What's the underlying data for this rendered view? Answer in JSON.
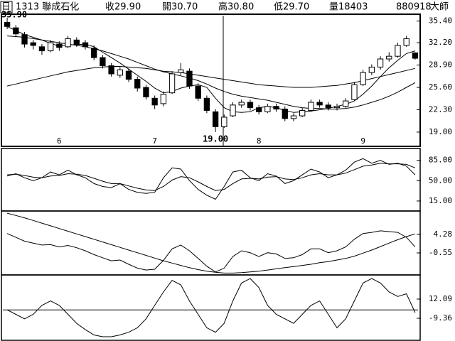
{
  "header": {
    "period": "日",
    "stock": "1313 聯成石化",
    "close": "收29.90",
    "open": "開30.70",
    "high": "高30.80",
    "low": "低29.70",
    "volume": "量18403",
    "date": "880918",
    "source": "大師"
  },
  "chart_data": [
    {
      "type": "candlestick",
      "categories": [
        null,
        null,
        null,
        null,
        null,
        null,
        "6",
        null,
        null,
        null,
        null,
        null,
        null,
        null,
        null,
        null,
        null,
        "7",
        null,
        null,
        null,
        null,
        null,
        null,
        null,
        null,
        null,
        null,
        null,
        "8",
        null,
        null,
        null,
        null,
        null,
        null,
        null,
        null,
        null,
        null,
        null,
        "9",
        null,
        null,
        null,
        null,
        null,
        null
      ],
      "open": [
        35.2,
        34.4,
        33.4,
        32.2,
        31.6,
        31.0,
        32.0,
        31.6,
        32.6,
        32.2,
        31.4,
        30.0,
        28.8,
        27.4,
        28.0,
        26.8,
        25.6,
        24.0,
        23.2,
        24.8,
        27.8,
        28.0,
        25.8,
        24.0,
        22.0,
        19.8,
        21.4,
        23.0,
        23.4,
        22.6,
        22.0,
        22.8,
        22.4,
        21.0,
        21.4,
        22.2,
        23.4,
        23.0,
        22.6,
        22.8,
        23.8,
        26.0,
        27.8,
        28.6,
        29.8,
        30.2,
        31.8,
        30.7
      ],
      "high": [
        35.9,
        34.8,
        33.8,
        32.6,
        32.0,
        32.6,
        32.4,
        33.2,
        33.0,
        32.6,
        31.8,
        30.4,
        29.2,
        28.6,
        28.4,
        27.2,
        26.0,
        24.4,
        25.0,
        28.0,
        29.2,
        28.4,
        26.2,
        24.4,
        22.4,
        21.6,
        23.4,
        23.8,
        23.8,
        23.0,
        23.2,
        23.2,
        22.8,
        21.8,
        22.6,
        23.8,
        23.8,
        23.4,
        23.2,
        24.0,
        26.4,
        28.2,
        29.0,
        30.2,
        30.8,
        32.2,
        33.2,
        30.8
      ],
      "low": [
        34.2,
        33.0,
        31.5,
        31.2,
        30.4,
        30.8,
        31.0,
        31.4,
        31.6,
        31.2,
        29.6,
        28.4,
        27.2,
        27.0,
        26.4,
        25.0,
        23.8,
        22.4,
        22.8,
        24.6,
        27.4,
        25.4,
        23.6,
        21.8,
        19.0,
        19.6,
        21.2,
        22.6,
        22.2,
        21.6,
        21.8,
        22.0,
        20.6,
        20.6,
        21.2,
        22.0,
        22.6,
        22.2,
        22.2,
        22.6,
        23.6,
        25.8,
        27.4,
        28.2,
        29.4,
        30.0,
        31.6,
        29.7
      ],
      "close": [
        34.6,
        33.5,
        32.0,
        31.8,
        31.0,
        32.2,
        31.5,
        32.8,
        32.0,
        31.6,
        30.0,
        28.8,
        27.6,
        28.2,
        26.8,
        25.5,
        24.2,
        23.0,
        24.6,
        27.6,
        28.2,
        25.8,
        24.0,
        22.2,
        19.8,
        21.2,
        23.0,
        23.4,
        22.6,
        22.0,
        22.8,
        22.4,
        21.0,
        21.4,
        22.2,
        23.4,
        23.0,
        22.6,
        22.8,
        23.6,
        26.0,
        27.8,
        28.6,
        29.8,
        30.2,
        31.8,
        32.8,
        29.9
      ],
      "series": [
        {
          "color": "#000000",
          "values": [
            34.6,
            34.0,
            33.4,
            33.0,
            32.6,
            32.1,
            31.7,
            31.9,
            31.9,
            32.0,
            31.6,
            30.8,
            30.0,
            29.2,
            28.3,
            27.4,
            26.5,
            25.5,
            24.8,
            25.0,
            25.5,
            25.8,
            26.0,
            25.6,
            24.0,
            22.6,
            22.0,
            21.9,
            22.0,
            22.6,
            22.8,
            22.6,
            22.2,
            21.9,
            22.0,
            22.1,
            22.3,
            22.5,
            22.8,
            23.1,
            23.6,
            24.6,
            25.8,
            27.2,
            28.5,
            29.6,
            30.6,
            31.0
          ]
        },
        {
          "color": "#000000",
          "values": [
            33.2,
            33.1,
            33.0,
            32.8,
            32.6,
            32.4,
            32.2,
            32.0,
            31.8,
            31.6,
            31.3,
            31.0,
            30.6,
            30.2,
            29.8,
            29.3,
            28.8,
            28.3,
            27.9,
            27.6,
            27.3,
            27.0,
            26.6,
            26.1,
            25.5,
            25.0,
            24.6,
            24.3,
            24.1,
            23.9,
            23.7,
            23.4,
            23.1,
            22.8,
            22.6,
            22.5,
            22.5,
            22.4,
            22.4,
            22.5,
            22.7,
            23.0,
            23.4,
            23.8,
            24.3,
            24.9,
            25.6,
            26.3
          ]
        },
        {
          "color": "#000000",
          "values": [
            25.8,
            26.1,
            26.4,
            26.7,
            27.0,
            27.3,
            27.6,
            27.9,
            28.1,
            28.3,
            28.5,
            28.6,
            28.7,
            28.7,
            28.6,
            28.5,
            28.4,
            28.2,
            28.0,
            27.9,
            27.8,
            27.6,
            27.4,
            27.2,
            27.0,
            26.8,
            26.6,
            26.4,
            26.2,
            26.0,
            25.9,
            25.8,
            25.7,
            25.6,
            25.6,
            25.6,
            25.7,
            25.8,
            25.9,
            26.1,
            26.3,
            26.6,
            26.9,
            27.2,
            27.5,
            27.8,
            28.1,
            28.4
          ]
        }
      ],
      "annotations": [
        {
          "value": 35.9,
          "label": "35.90"
        },
        {
          "value": 19,
          "label": "19.00"
        }
      ],
      "ylim": [
        17.0,
        36.2
      ],
      "yticks": [
        {
          "value": 35.4,
          "label": "35.40"
        },
        {
          "value": 32.2,
          "label": "32.20"
        },
        {
          "value": 28.9,
          "label": "28.90"
        },
        {
          "value": 25.6,
          "label": "25.60"
        },
        {
          "value": 22.3,
          "label": "22.30"
        },
        {
          "value": 19,
          "label": "19.00"
        }
      ]
    },
    {
      "type": "line",
      "series": [
        {
          "color": "#000000",
          "values": [
            58,
            62,
            55,
            50,
            55,
            65,
            60,
            68,
            60,
            55,
            45,
            40,
            38,
            45,
            35,
            30,
            28,
            30,
            55,
            72,
            70,
            50,
            35,
            25,
            18,
            40,
            65,
            68,
            55,
            50,
            62,
            58,
            45,
            50,
            60,
            70,
            65,
            55,
            60,
            68,
            82,
            88,
            80,
            85,
            78,
            80,
            75,
            60
          ]
        },
        {
          "color": "#000000",
          "values": [
            60,
            61,
            59,
            56,
            55,
            58,
            59,
            62,
            61,
            59,
            54,
            49,
            45,
            45,
            41,
            37,
            34,
            33,
            40,
            51,
            57,
            55,
            48,
            40,
            33,
            35,
            45,
            53,
            54,
            53,
            56,
            57,
            53,
            52,
            55,
            60,
            62,
            60,
            60,
            63,
            69,
            75,
            77,
            80,
            79,
            79,
            78,
            72
          ]
        }
      ],
      "ylim": [
        -1,
        103
      ],
      "yticks": [
        {
          "value": 85,
          "label": "85.00"
        },
        {
          "value": 50,
          "label": "50.00"
        },
        {
          "value": 15,
          "label": "15.00"
        }
      ]
    },
    {
      "type": "line",
      "series": [
        {
          "color": "#000000",
          "values": [
            9.8,
            9.2,
            8.6,
            7.9,
            7.2,
            6.5,
            5.8,
            5.1,
            4.4,
            3.7,
            3.0,
            2.3,
            1.6,
            0.9,
            0.2,
            -0.5,
            -1.2,
            -1.9,
            -2.6,
            -3.2,
            -3.8,
            -4.4,
            -4.9,
            -5.3,
            -5.6,
            -5.8,
            -5.8,
            -5.7,
            -5.5,
            -5.3,
            -5.0,
            -4.7,
            -4.4,
            -4.1,
            -3.8,
            -3.5,
            -3.1,
            -2.8,
            -2.4,
            -2.0,
            -1.4,
            -0.6,
            0.2,
            1.1,
            2.0,
            2.9,
            3.7,
            4.4
          ]
        },
        {
          "color": "#000000",
          "values": [
            4.5,
            3.5,
            2.5,
            2.0,
            1.5,
            1.6,
            1.0,
            1.4,
            0.8,
            0.0,
            -1.0,
            -1.8,
            -2.6,
            -2.4,
            -3.5,
            -4.5,
            -5.0,
            -4.8,
            -2.5,
            0.5,
            1.5,
            0.0,
            -2.0,
            -4.0,
            -5.5,
            -4.5,
            -1.5,
            0.0,
            -0.5,
            -1.5,
            -0.5,
            -0.8,
            -2.0,
            -1.8,
            -1.0,
            0.5,
            0.5,
            -0.5,
            0.0,
            1.0,
            3.0,
            4.5,
            4.8,
            5.2,
            5.0,
            4.8,
            3.5,
            1.0
          ]
        }
      ],
      "ylim": [
        -6.1,
        10.0
      ],
      "yticks": [
        4.28,
        -0.55
      ]
    },
    {
      "type": "line",
      "series": [
        {
          "color": "#000000",
          "values": [
            0,
            -5,
            -10,
            -5,
            5,
            10,
            5,
            -5,
            -15,
            -22,
            -28,
            -30,
            -30,
            -28,
            -25,
            -20,
            -10,
            5,
            20,
            33,
            28,
            10,
            -5,
            -20,
            -25,
            -15,
            10,
            30,
            35,
            25,
            5,
            -5,
            -10,
            -15,
            -5,
            5,
            10,
            -5,
            -20,
            -10,
            10,
            30,
            35,
            30,
            20,
            15,
            18,
            -3
          ]
        }
      ],
      "zero_line": true,
      "ylim": [
        -33.2,
        37.5
      ],
      "yticks": [
        12.09,
        -9.36
      ]
    }
  ]
}
